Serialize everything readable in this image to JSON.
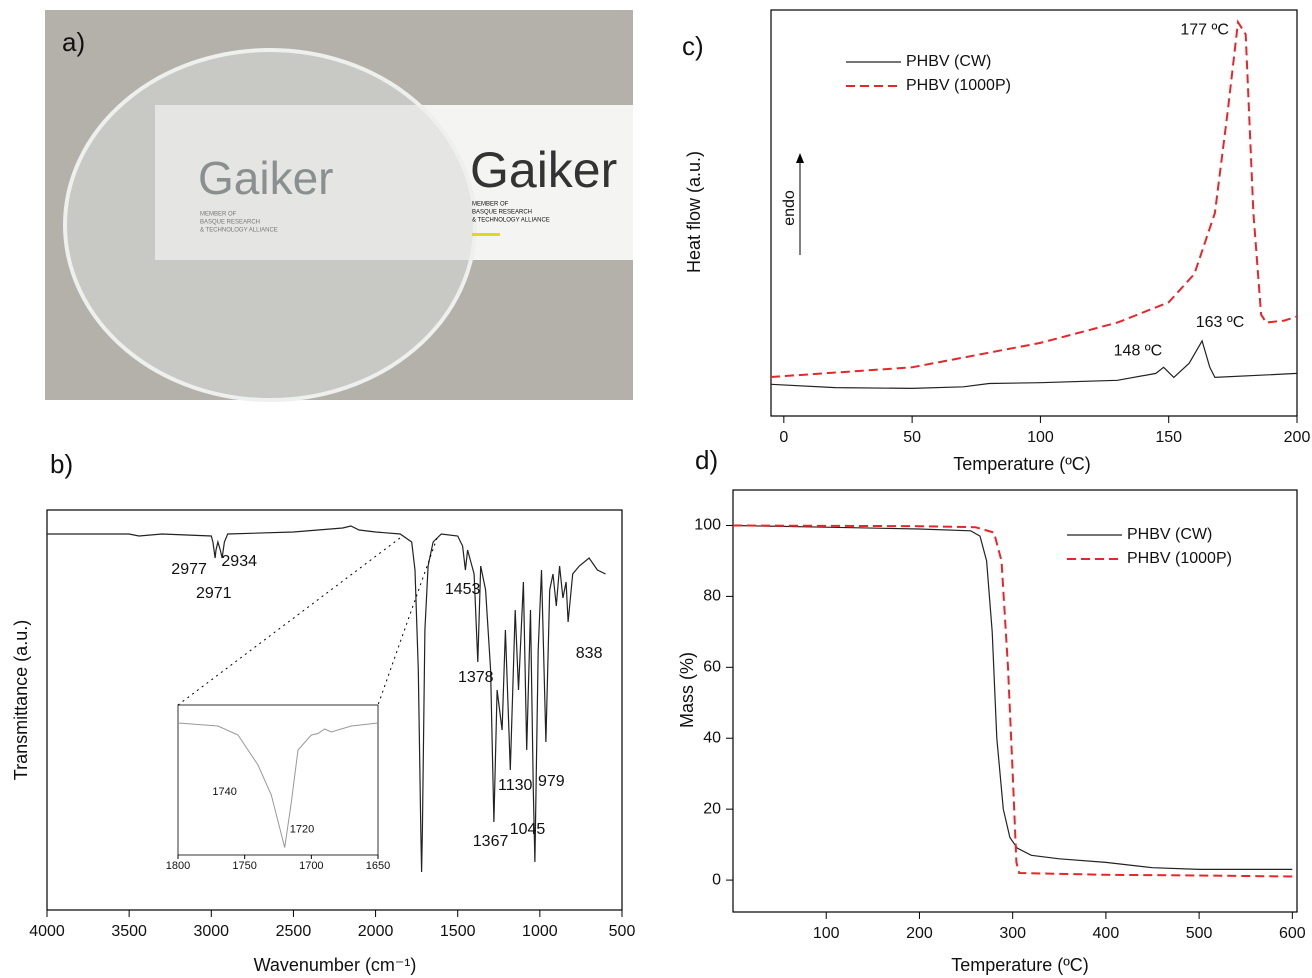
{
  "photo": {
    "label": "a)",
    "logo_text": "Gaiker",
    "logo_lines": [
      "MEMBER OF",
      "BASQUE RESEARCH",
      "& TECHNOLOGY ALLIANCE"
    ]
  },
  "chart_data": [
    {
      "type": "line",
      "label": "b)",
      "xlabel": "Wavenumber (cm⁻¹)",
      "ylabel": "Transmittance (a.u.)",
      "xlim": [
        4000,
        500
      ],
      "xticks": [
        4000,
        3500,
        3000,
        2500,
        2000,
        1500,
        1000,
        500
      ],
      "ylim": [
        0,
        100
      ],
      "color": "#222222",
      "x": [
        4000,
        3500,
        3440,
        3300,
        3000,
        2990,
        2977,
        2971,
        2960,
        2945,
        2934,
        2920,
        2900,
        2500,
        2200,
        2150,
        2100,
        2000,
        1850,
        1780,
        1760,
        1740,
        1725,
        1720,
        1715,
        1700,
        1680,
        1650,
        1600,
        1500,
        1470,
        1453,
        1440,
        1400,
        1378,
        1360,
        1330,
        1300,
        1280,
        1260,
        1230,
        1210,
        1180,
        1150,
        1130,
        1100,
        1080,
        1057,
        1040,
        1030,
        1010,
        990,
        963,
        940,
        920,
        900,
        880,
        860,
        840,
        828,
        800,
        760,
        700,
        650,
        600
      ],
      "values": [
        94,
        94,
        93.5,
        94,
        93.5,
        92,
        88,
        90,
        92,
        90,
        88,
        92,
        94,
        94.5,
        95.5,
        96,
        95,
        94.5,
        94,
        92,
        85,
        60,
        20,
        9.5,
        20,
        70,
        86,
        92,
        94,
        93.5,
        91,
        85,
        90,
        84,
        62,
        86,
        80,
        60,
        22,
        55,
        45,
        70,
        35,
        75,
        55,
        82,
        40,
        75,
        30,
        12,
        65,
        85,
        42,
        80,
        84,
        76,
        86,
        78,
        82,
        72,
        84,
        86,
        88,
        85,
        84
      ],
      "annotations": [
        {
          "text": "2977",
          "x": 3135,
          "y": 85
        },
        {
          "text": "2934",
          "x": 2830,
          "y": 87
        },
        {
          "text": "2971",
          "x": 2985,
          "y": 79
        },
        {
          "text": "1453",
          "x": 1470,
          "y": 80
        },
        {
          "text": "1378",
          "x": 1390,
          "y": 58
        },
        {
          "text": "1367",
          "x": 1300,
          "y": 17
        },
        {
          "text": "1130",
          "x": 1150,
          "y": 31
        },
        {
          "text": "979",
          "x": 930,
          "y": 32
        },
        {
          "text": "1045",
          "x": 1075,
          "y": 20
        },
        {
          "text": "838",
          "x": 700,
          "y": 64
        }
      ],
      "inset": {
        "xlim": [
          1800,
          1650
        ],
        "xticks": [
          1800,
          1750,
          1700,
          1650
        ],
        "ylim": [
          0,
          100
        ],
        "color": "#999999",
        "x": [
          1800,
          1770,
          1755,
          1740,
          1730,
          1720,
          1715,
          1710,
          1700,
          1695,
          1690,
          1685,
          1670,
          1650
        ],
        "values": [
          88,
          86,
          80,
          60,
          40,
          5,
          35,
          70,
          80,
          81,
          84,
          82,
          86,
          88
        ],
        "annotations": [
          {
            "text": "1740",
            "x": 1765,
            "y": 42
          },
          {
            "text": "1720",
            "x": 1707,
            "y": 17
          }
        ]
      }
    },
    {
      "type": "line",
      "label": "c)",
      "xlabel": "Temperature (ºC)",
      "ylabel": "Heat flow (a.u.)",
      "arrow_label": "endo",
      "xlim": [
        -5,
        200
      ],
      "xticks": [
        0,
        50,
        100,
        150,
        200
      ],
      "ylim": [
        0,
        100
      ],
      "legend": "upper left",
      "series": [
        {
          "name": "PHBV (CW)",
          "color": "#222222",
          "dash": false,
          "x": [
            -5,
            20,
            50,
            70,
            80,
            100,
            130,
            145,
            148,
            152,
            158,
            163,
            166,
            168,
            200
          ],
          "values": [
            7.8,
            7,
            6.8,
            7.2,
            8,
            8.2,
            8.8,
            10.5,
            12,
            9.5,
            13,
            18.5,
            12,
            9.5,
            10.5
          ]
        },
        {
          "name": "PHBV (1000P)",
          "color": "#e8262a",
          "dash": true,
          "x": [
            -5,
            50,
            100,
            130,
            150,
            160,
            168,
            173,
            177,
            180,
            183,
            186,
            188,
            195,
            200
          ],
          "values": [
            9.6,
            12,
            18,
            23,
            28,
            35,
            50,
            75,
            97,
            94,
            50,
            25,
            23,
            23.5,
            24.5
          ]
        }
      ],
      "annotations": [
        {
          "text": "177 ºC",
          "x": 164,
          "y": 95
        },
        {
          "text": "163 ºC",
          "x": 170,
          "y": 23
        },
        {
          "text": "148 ºC",
          "x": 138,
          "y": 16
        }
      ]
    },
    {
      "type": "line",
      "label": "d)",
      "xlabel": "Temperature (ºC)",
      "ylabel": "Mass (%)",
      "xlim": [
        0,
        605
      ],
      "xticks": [
        100,
        200,
        300,
        400,
        500,
        600
      ],
      "ylim": [
        -9,
        110
      ],
      "yticks": [
        0,
        20,
        40,
        60,
        80,
        100
      ],
      "legend": "upper right",
      "series": [
        {
          "name": "PHBV (CW)",
          "color": "#222222",
          "dash": false,
          "x": [
            0,
            100,
            200,
            255,
            265,
            272,
            278,
            283,
            290,
            297,
            305,
            320,
            350,
            400,
            450,
            500,
            600
          ],
          "values": [
            100,
            99.5,
            99,
            98.5,
            97,
            90,
            70,
            40,
            20,
            12,
            9,
            7,
            6,
            5,
            3.5,
            3,
            3
          ]
        },
        {
          "name": "PHBV (1000P)",
          "color": "#e8262a",
          "dash": true,
          "x": [
            0,
            200,
            260,
            280,
            288,
            295,
            300,
            304,
            307,
            400,
            500,
            600
          ],
          "values": [
            100,
            99.8,
            99.5,
            98,
            90,
            60,
            30,
            5,
            2,
            1.5,
            1.3,
            1
          ]
        }
      ]
    }
  ]
}
